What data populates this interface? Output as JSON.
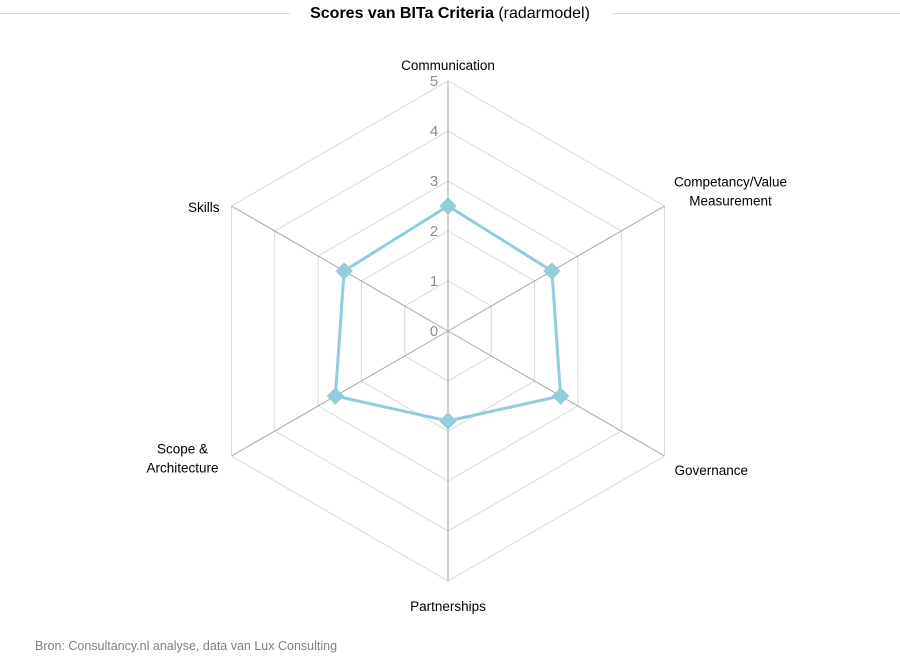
{
  "header": {
    "title_bold": "Scores van BITa Criteria",
    "title_rest": " (radarmodel)"
  },
  "footer": {
    "source": "Bron: Consultancy.nl analyse,  data van Lux Consulting"
  },
  "colors": {
    "series": "#92cddc",
    "grid": "#d9d9d9",
    "spoke": "#a6a6a6"
  },
  "chart_data": {
    "type": "radar",
    "title": "Scores van BITa Criteria (radarmodel)",
    "categories": [
      [
        "Communication"
      ],
      [
        "Competancy/Value",
        "Measurement"
      ],
      [
        "Governance"
      ],
      [
        "Partnerships"
      ],
      [
        "Scope &",
        "Architecture"
      ],
      [
        "Skills"
      ]
    ],
    "range": [
      0,
      5
    ],
    "ticks": [
      "0",
      "1",
      "2",
      "3",
      "4",
      "5"
    ],
    "grid": true,
    "legend": "none",
    "series": [
      {
        "values": [
          2.5,
          2.4,
          2.6,
          1.8,
          2.6,
          2.4
        ]
      }
    ]
  }
}
